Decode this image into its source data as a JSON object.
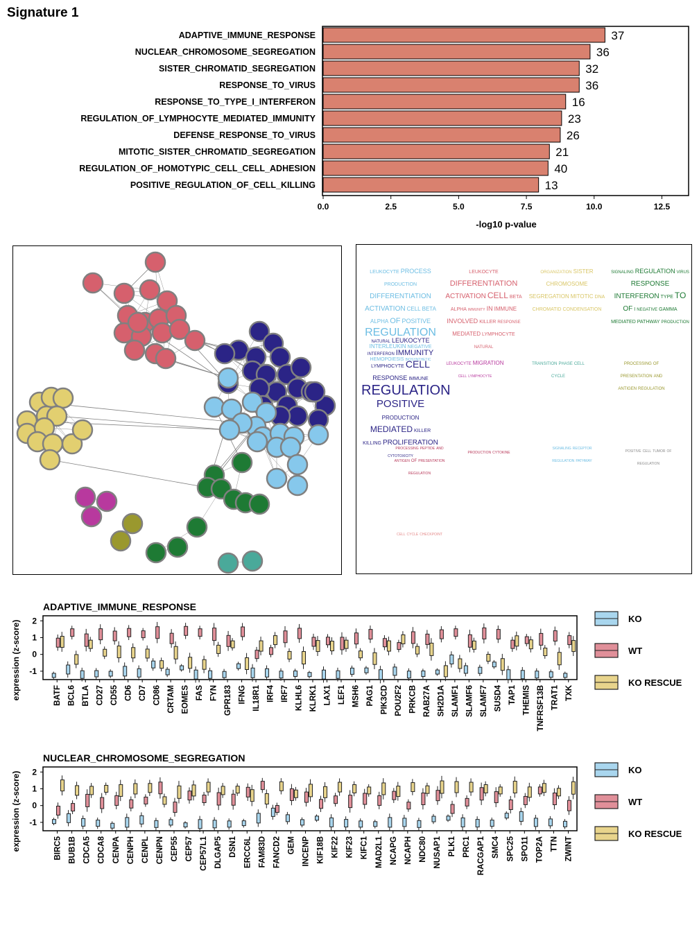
{
  "title": "Signature 1",
  "chart_data": [
    {
      "type": "bar",
      "orientation": "horizontal",
      "categories": [
        "ADAPTIVE_IMMUNE_RESPONSE",
        "NUCLEAR_CHROMOSOME_SEGREGATION",
        "SISTER_CHROMATID_SEGREGATION",
        "RESPONSE_TO_VIRUS",
        "RESPONSE_TO_TYPE_I_INTERFERON",
        "REGULATION_OF_LYMPHOCYTE_MEDIATED_IMMUNITY",
        "DEFENSE_RESPONSE_TO_VIRUS",
        "MITOTIC_SISTER_CHROMATID_SEGREGATION",
        "REGULATION_OF_HOMOTYPIC_CELL_CELL_ADHESION",
        "POSITIVE_REGULATION_OF_CELL_KILLING"
      ],
      "values": [
        10.4,
        9.85,
        9.45,
        9.45,
        8.95,
        8.8,
        8.75,
        8.35,
        8.3,
        7.95
      ],
      "data_labels": [
        "37",
        "36",
        "32",
        "36",
        "16",
        "23",
        "26",
        "21",
        "40",
        "13"
      ],
      "xlabel": "-log10 p-value",
      "xlim": [
        0,
        13
      ],
      "xticks": [
        "0.0",
        "2.5",
        "5.0",
        "7.5",
        "10.0",
        "12.5"
      ],
      "color": "#d9816f"
    },
    {
      "type": "box",
      "title": "ADAPTIVE_IMMUNE_RESPONSE",
      "ylabel": "expression (z-score)",
      "yticks": [
        "2",
        "1",
        "0",
        "-1"
      ],
      "ylim": [
        -1.5,
        2.3
      ],
      "categories": [
        "BATF",
        "BCL6",
        "BTLA",
        "CD27",
        "CD55",
        "CD6",
        "CD7",
        "CD86",
        "CRTAM",
        "EOMES",
        "FAS",
        "FYN",
        "GPR183",
        "IFNG",
        "IL18R1",
        "IRF4",
        "IRF7",
        "KLHL6",
        "KLRK1",
        "LAX1",
        "LEF1",
        "MSH6",
        "PAG1",
        "PIK3CD",
        "POU2F2",
        "PRKCB",
        "RAB27A",
        "SH2D1A",
        "SLAMF1",
        "SLAMF6",
        "SLAMF7",
        "SUSD4",
        "TAP1",
        "THEMIS",
        "TNFRSF13B",
        "TRAT1",
        "TXK"
      ],
      "series": [
        {
          "name": "KO",
          "color": "#a9d6ee",
          "values": [
            -1.25,
            -0.9,
            -1.2,
            -1.15,
            -1.15,
            -1.0,
            -1.1,
            -0.6,
            -1.05,
            -0.8,
            -1.2,
            -1.2,
            -1.2,
            -0.7,
            -1.1,
            -1.1,
            -1.2,
            -1.15,
            -1.2,
            -1.2,
            -1.2,
            -1.0,
            -0.95,
            -1.2,
            -1.0,
            -1.2,
            -1.15,
            -1.05,
            -0.3,
            -0.9,
            -0.95,
            -0.6,
            -1.2,
            -1.2,
            -1.2,
            -1.2,
            -1.25
          ]
        },
        {
          "name": "WT",
          "color": "#e08f99",
          "values": [
            0.7,
            1.3,
            0.85,
            1.2,
            1.1,
            1.3,
            1.2,
            1.3,
            0.95,
            1.4,
            1.3,
            1.2,
            0.8,
            1.35,
            0.0,
            0.2,
            1.05,
            1.25,
            0.75,
            0.8,
            0.65,
            0.95,
            1.2,
            0.7,
            0.5,
            1.0,
            0.9,
            1.2,
            1.3,
            0.8,
            1.25,
            1.2,
            0.6,
            0.85,
            0.9,
            1.1,
            0.85
          ]
        },
        {
          "name": "KO RESCUE",
          "color": "#e8d48c",
          "values": [
            0.75,
            -0.3,
            0.6,
            0.1,
            0.15,
            0.1,
            0.05,
            -0.6,
            0.1,
            -0.5,
            -0.6,
            0.3,
            0.6,
            -0.55,
            0.5,
            0.85,
            -0.05,
            -0.2,
            0.5,
            0.5,
            0.6,
            0.0,
            -0.25,
            0.5,
            0.9,
            0.25,
            0.3,
            -1.0,
            -0.55,
            0.55,
            -0.2,
            -0.6,
            0.8,
            0.6,
            0.15,
            -0.25,
            0.5
          ]
        }
      ]
    },
    {
      "type": "box",
      "title": "NUCLEAR_CHROMOSOME_SEGREGATION",
      "ylabel": "expression (z-score)",
      "yticks": [
        "2",
        "1",
        "0",
        "-1"
      ],
      "ylim": [
        -1.5,
        2.3
      ],
      "categories": [
        "BIRC5",
        "BUB1B",
        "CDCA5",
        "CDCA8",
        "CENPA",
        "CENPH",
        "CENPL",
        "CENPN",
        "CEP55",
        "CEP57",
        "CEP57L1",
        "DLGAP5",
        "DSN1",
        "ERCC6L",
        "FAM83D",
        "FANCD2",
        "GEM",
        "INCENP",
        "KIF18B",
        "KIF22",
        "KIF23",
        "KIFC1",
        "MAD2L1",
        "NCAPG",
        "NCAPH",
        "NDC80",
        "NUSAP1",
        "PLK1",
        "PRC1",
        "RACGAP1",
        "SMC4",
        "SPC25",
        "SPO11",
        "TOP2A",
        "TTN",
        "ZWINT"
      ],
      "series": [
        {
          "name": "KO",
          "color": "#a9d6ee",
          "values": [
            -0.95,
            -0.75,
            -1.0,
            -1.05,
            -1.2,
            -1.0,
            -0.85,
            -1.1,
            -1.0,
            -1.15,
            -1.1,
            -1.1,
            -1.1,
            -1.05,
            -0.75,
            -0.4,
            -0.75,
            -1.0,
            -0.75,
            -1.0,
            -1.05,
            -1.1,
            -1.1,
            -1.0,
            -1.0,
            -1.1,
            -0.8,
            -0.75,
            -1.0,
            -1.05,
            -1.05,
            -0.6,
            -0.65,
            -1.0,
            -1.0,
            -1.1
          ]
        },
        {
          "name": "WT",
          "color": "#e08f99",
          "values": [
            -0.3,
            -0.1,
            0.3,
            0.15,
            0.3,
            0.1,
            0.3,
            1.05,
            -0.1,
            0.6,
            0.4,
            0.4,
            0.35,
            0.8,
            1.2,
            -0.2,
            0.65,
            0.5,
            0.1,
            0.35,
            0.25,
            0.4,
            0.3,
            0.6,
            0.0,
            0.4,
            0.6,
            -0.2,
            0.2,
            0.7,
            0.5,
            0.05,
            0.3,
            0.9,
            0.4,
            0.0
          ]
        },
        {
          "name": "KO RESCUE",
          "color": "#e8d48c",
          "values": [
            1.2,
            0.9,
            0.9,
            1.0,
            0.9,
            1.0,
            1.05,
            0.3,
            0.8,
            0.9,
            1.1,
            0.9,
            0.95,
            0.6,
            0.4,
            1.15,
            0.7,
            0.9,
            0.8,
            1.1,
            1.0,
            0.9,
            1.0,
            0.85,
            1.1,
            0.95,
            1.1,
            1.1,
            1.1,
            1.0,
            0.9,
            1.1,
            0.8,
            1.05,
            0.8,
            1.05
          ]
        }
      ]
    }
  ],
  "legend": {
    "ko": "KO",
    "wt": "WT",
    "ko_rescue": "KO RESCUE"
  },
  "network": {
    "clusters": [
      {
        "color": "#d6606d"
      },
      {
        "color": "#2b2486"
      },
      {
        "color": "#86c8ec"
      },
      {
        "color": "#e2cf70"
      },
      {
        "color": "#1e7a34"
      },
      {
        "color": "#b8399e"
      },
      {
        "color": "#9a982e"
      },
      {
        "color": "#4aa99a"
      }
    ]
  },
  "word_clouds": [
    {
      "color": "#6cbde3",
      "words": [
        "LEUKOCYTE",
        "PROCESS",
        "PRODUCTION",
        "DIFFERENTIATION",
        "ACTIVATION",
        "CELL",
        "BETA",
        "ALPHA",
        "OF",
        "POSITIVE",
        "REGULATION",
        "INTERLEUKIN",
        "NEGATIVE",
        "HEMOPOIESIS",
        "BIOSYNTHETIC"
      ]
    },
    {
      "color": "#d6606d",
      "words": [
        "LEUKOCYTE",
        "DIFFERENTIATION",
        "ACTIVATION",
        "CELL",
        "BETA",
        "ALPHA",
        "IMMUNITY",
        "IN",
        "IMMUNE",
        "INVOLVED",
        "KILLER",
        "RESPONSE",
        "MEDIATED",
        "LYMPHOCYTE",
        "NATURAL"
      ]
    },
    {
      "color": "#d9c666",
      "words": [
        "ORGANIZATION",
        "SISTER",
        "CHROMOSOME",
        "SEGREGATION",
        "MITOTIC",
        "DNA",
        "CHROMATID",
        "CONDENSATION"
      ]
    },
    {
      "color": "#1e7a34",
      "words": [
        "SIGNALING",
        "REGULATION",
        "VIRUS",
        "RESPONSE",
        "INTERFERON",
        "TYPE",
        "TO",
        "OF",
        "I",
        "NEGATIVE",
        "GAMMA",
        "MEDIATED",
        "PATHWAY",
        "PRODUCTION"
      ]
    },
    {
      "color": "#2b2486",
      "words": [
        "NATURAL",
        "LEUKOCYTE",
        "INTERFERON",
        "IMMUNITY",
        "LYMPHOCYTE",
        "CELL",
        "RESPONSE",
        "IMMUNE",
        "REGULATION",
        "POSITIVE",
        "PRODUCTION",
        "MEDIATED",
        "KILLER",
        "KILLING",
        "PROLIFERATION",
        "CYTOTOXICITY"
      ]
    },
    {
      "color": "#b8399e",
      "words": [
        "LEUKOCYTE",
        "MIGRATION",
        "CELL",
        "LYMPHOCYTE"
      ]
    },
    {
      "color": "#4aa99a",
      "words": [
        "TRANSITION",
        "PHASE",
        "CELL",
        "CYCLE"
      ]
    },
    {
      "color": "#9a982e",
      "words": [
        "PROCESSING",
        "OF",
        "PRESENTATION",
        "AND",
        "ANTIGEN",
        "REGULATION"
      ]
    },
    {
      "color": "#b8395a",
      "words": [
        "PROCESSING",
        "PEPTIDE",
        "AND",
        "ANTIGEN",
        "OF",
        "PRESENTATION",
        "REGULATION"
      ]
    },
    {
      "color": "#b8395a",
      "words": [
        "PRODUCTION",
        "CYTOKINE"
      ]
    },
    {
      "color": "#6cbde3",
      "words": [
        "SIGNALING",
        "RECEPTOR",
        "REGULATION",
        "PATHWAY"
      ]
    },
    {
      "color": "#8a8a8a",
      "words": [
        "POSITIVE",
        "CELL",
        "TUMOR",
        "OF",
        "REGULATION"
      ]
    },
    {
      "color": "#e48a8a",
      "words": [
        "CELL",
        "CYCLE",
        "CHECKPOINT"
      ]
    }
  ]
}
